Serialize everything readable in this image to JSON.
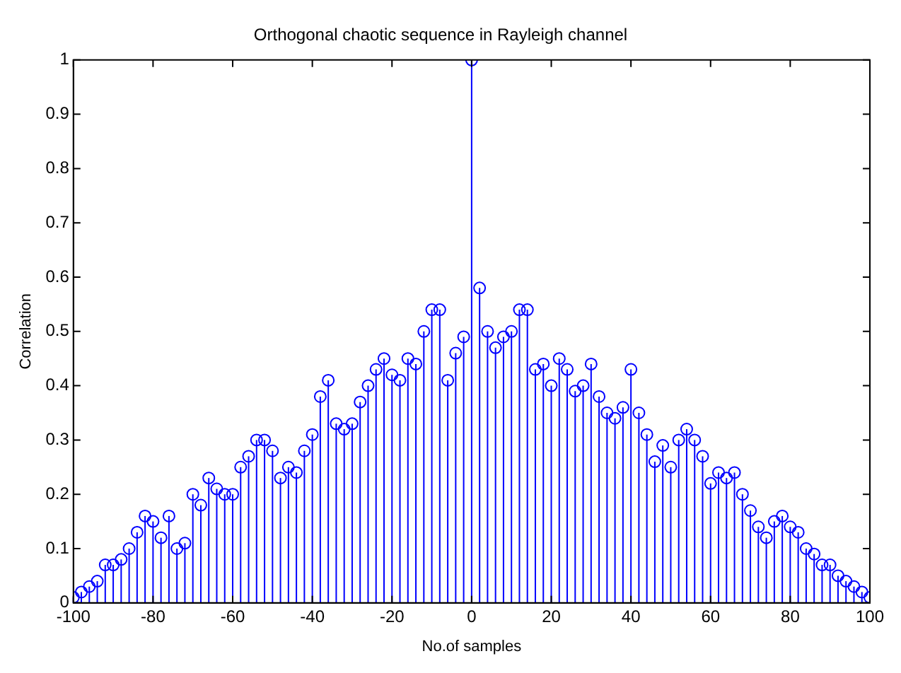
{
  "chart_data": {
    "type": "lollipop",
    "title": "Orthogonal chaotic sequence in Rayleigh channel",
    "xlabel": "No.of samples",
    "ylabel": "Correlation",
    "x": [
      -100,
      -98,
      -96,
      -94,
      -92,
      -90,
      -88,
      -86,
      -84,
      -82,
      -80,
      -78,
      -76,
      -74,
      -72,
      -70,
      -68,
      -66,
      -64,
      -62,
      -60,
      -58,
      -56,
      -54,
      -52,
      -50,
      -48,
      -46,
      -44,
      -42,
      -40,
      -38,
      -36,
      -34,
      -32,
      -30,
      -28,
      -26,
      -24,
      -22,
      -20,
      -18,
      -16,
      -14,
      -12,
      -10,
      -8,
      -6,
      -4,
      -2,
      0,
      2,
      4,
      6,
      8,
      10,
      12,
      14,
      16,
      18,
      20,
      22,
      24,
      26,
      28,
      30,
      32,
      34,
      36,
      38,
      40,
      42,
      44,
      46,
      48,
      50,
      52,
      54,
      56,
      58,
      60,
      62,
      64,
      66,
      68,
      70,
      72,
      74,
      76,
      78,
      80,
      82,
      84,
      86,
      88,
      90,
      92,
      94,
      96,
      98,
      100
    ],
    "series": [
      {
        "color": "#0000ff",
        "values": [
          0.01,
          0.02,
          0.03,
          0.04,
          0.07,
          0.07,
          0.08,
          0.1,
          0.13,
          0.16,
          0.15,
          0.12,
          0.16,
          0.1,
          0.11,
          0.2,
          0.18,
          0.23,
          0.21,
          0.2,
          0.2,
          0.25,
          0.27,
          0.3,
          0.3,
          0.28,
          0.23,
          0.25,
          0.24,
          0.28,
          0.31,
          0.38,
          0.41,
          0.33,
          0.32,
          0.33,
          0.37,
          0.4,
          0.43,
          0.45,
          0.42,
          0.41,
          0.45,
          0.44,
          0.5,
          0.54,
          0.54,
          0.41,
          0.46,
          0.49,
          1,
          0.58,
          0.5,
          0.47,
          0.49,
          0.5,
          0.54,
          0.54,
          0.43,
          0.44,
          0.4,
          0.45,
          0.43,
          0.39,
          0.4,
          0.44,
          0.38,
          0.35,
          0.34,
          0.36,
          0.43,
          0.35,
          0.31,
          0.26,
          0.29,
          0.25,
          0.3,
          0.32,
          0.3,
          0.27,
          0.22,
          0.24,
          0.23,
          0.24,
          0.2,
          0.17,
          0.14,
          0.12,
          0.15,
          0.16,
          0.14,
          0.13,
          0.1,
          0.09,
          0.07,
          0.07,
          0.05,
          0.04,
          0.03,
          0.02,
          0.01
        ]
      }
    ],
    "xlim": [
      -100,
      100
    ],
    "xticks": [
      -100,
      -80,
      -60,
      -40,
      -20,
      0,
      20,
      40,
      60,
      80,
      100
    ],
    "ylim": [
      0,
      1
    ],
    "yticks": [
      0,
      0.1,
      0.2,
      0.3,
      0.4,
      0.5,
      0.6,
      0.7,
      0.8,
      0.9,
      1
    ],
    "grid": false,
    "legend": false,
    "marker": "circle"
  }
}
